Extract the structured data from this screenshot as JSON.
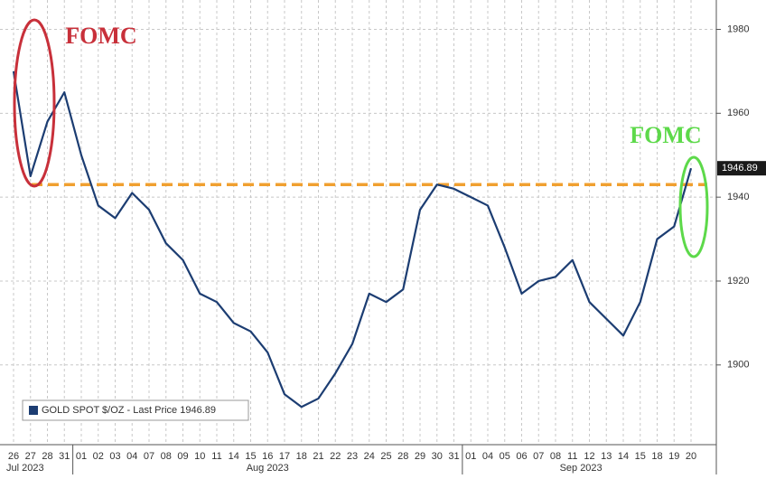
{
  "chart_data": {
    "type": "line",
    "categories": [
      "26",
      "27",
      "28",
      "31",
      "01",
      "02",
      "03",
      "04",
      "07",
      "08",
      "09",
      "10",
      "11",
      "14",
      "15",
      "16",
      "17",
      "18",
      "21",
      "22",
      "23",
      "24",
      "25",
      "28",
      "29",
      "30",
      "31",
      "01",
      "04",
      "05",
      "06",
      "07",
      "08",
      "11",
      "12",
      "13",
      "14",
      "15",
      "18",
      "19",
      "20"
    ],
    "month_labels": [
      "Jul 2023",
      "Aug 2023",
      "Sep 2023"
    ],
    "series": [
      {
        "name": "GOLD SPOT $/OZ - Last Price 1946.89",
        "color": "#1c3d72",
        "values": [
          1970,
          1945,
          1958,
          1965,
          1950,
          1938,
          1935,
          1941,
          1937,
          1929,
          1925,
          1917,
          1915,
          1910,
          1908,
          1903,
          1893,
          1890,
          1892,
          1898,
          1905,
          1917,
          1915,
          1918,
          1937,
          1943,
          1942,
          1940,
          1938,
          1928,
          1917,
          1920,
          1921,
          1925,
          1915,
          1911,
          1907,
          1915,
          1930,
          1933,
          1946.89
        ]
      }
    ],
    "reference_line": {
      "value": 1943,
      "color": "#f0a030"
    },
    "annotations": [
      {
        "text": "FOMC",
        "color": "#c8303a"
      },
      {
        "text": "FOMC",
        "color": "#5dd94a"
      }
    ],
    "ylim": [
      1881,
      1987
    ],
    "yticks": [
      1900,
      1920,
      1940,
      1960,
      1980
    ],
    "grid": true
  }
}
